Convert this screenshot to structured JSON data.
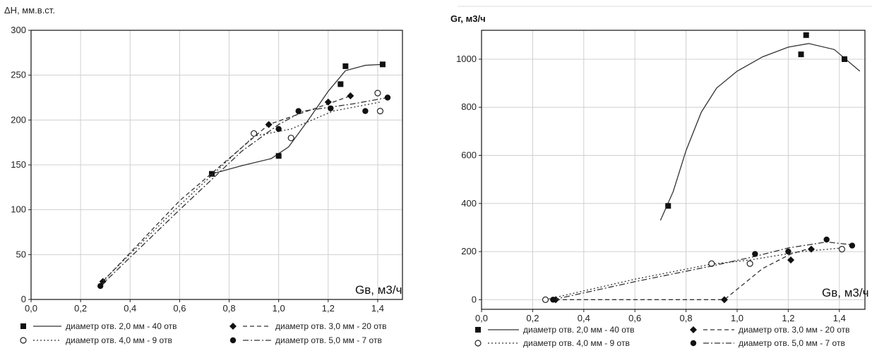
{
  "chart_data": [
    {
      "type": "scatter",
      "ylabel": "ΔН, мм.в.ст.",
      "xlabel": "Gв, м3/ч",
      "xlim": [
        0.0,
        1.5
      ],
      "ylim": [
        0,
        300
      ],
      "xticks": [
        "0,0",
        "0,2",
        "0,4",
        "0,6",
        "0,8",
        "1,0",
        "1,2",
        "1,4"
      ],
      "yticks": [
        "0",
        "50",
        "100",
        "150",
        "200",
        "250",
        "300"
      ],
      "grid": true,
      "legend_position": "bottom",
      "series": [
        {
          "name": "диаметр отв. 2,0 мм - 40 отв",
          "marker": "square-filled",
          "line": "solid",
          "points": [
            [
              0.73,
              140
            ],
            [
              1.0,
              160
            ],
            [
              1.25,
              240
            ],
            [
              1.27,
              260
            ],
            [
              1.42,
              262
            ]
          ],
          "curve": [
            [
              0.73,
              140
            ],
            [
              0.85,
              149
            ],
            [
              0.97,
              157
            ],
            [
              1.04,
              170
            ],
            [
              1.12,
              200
            ],
            [
              1.2,
              232
            ],
            [
              1.27,
              255
            ],
            [
              1.35,
              261
            ],
            [
              1.42,
              262
            ]
          ]
        },
        {
          "name": "диаметр отв. 3,0 мм - 20 отв",
          "marker": "diamond-filled",
          "line": "dashed",
          "points": [
            [
              0.29,
              20
            ],
            [
              0.96,
              195
            ],
            [
              1.2,
              220
            ],
            [
              1.29,
              227
            ]
          ],
          "curve": [
            [
              0.29,
              20
            ],
            [
              0.6,
              110
            ],
            [
              0.96,
              195
            ],
            [
              1.2,
              218
            ],
            [
              1.29,
              227
            ]
          ]
        },
        {
          "name": "диаметр отв. 4,0 мм - 9 отв",
          "marker": "circle-open",
          "line": "dotted",
          "points": [
            [
              0.9,
              185
            ],
            [
              1.05,
              180
            ],
            [
              1.4,
              230
            ],
            [
              1.41,
              210
            ]
          ],
          "curve": [
            [
              0.28,
              18
            ],
            [
              0.6,
              105
            ],
            [
              0.9,
              182
            ],
            [
              1.05,
              190
            ],
            [
              1.22,
              210
            ],
            [
              1.41,
              220
            ]
          ]
        },
        {
          "name": "диаметр отв. 5,0 мм - 7 отв",
          "marker": "circle-filled",
          "line": "dashdot",
          "points": [
            [
              0.28,
              15
            ],
            [
              1.0,
              190
            ],
            [
              1.08,
              210
            ],
            [
              1.21,
              213
            ],
            [
              1.35,
              210
            ],
            [
              1.44,
              225
            ]
          ],
          "curve": [
            [
              0.28,
              15
            ],
            [
              0.6,
              100
            ],
            [
              0.85,
              165
            ],
            [
              1.0,
              195
            ],
            [
              1.1,
              210
            ],
            [
              1.3,
              218
            ],
            [
              1.44,
              225
            ]
          ]
        }
      ]
    },
    {
      "type": "scatter",
      "ylabel": "Gг, м3/ч",
      "xlabel": "Gв, м3/ч",
      "xlim": [
        0.0,
        1.5
      ],
      "ylim": [
        -40,
        1120
      ],
      "xticks": [
        "0,0",
        "0,2",
        "0,4",
        "0,6",
        "0,8",
        "1,0",
        "1,2",
        "1,4"
      ],
      "yticks": [
        "0",
        "200",
        "400",
        "600",
        "800",
        "1000"
      ],
      "grid": true,
      "legend_position": "bottom",
      "series": [
        {
          "name": "диаметр отв. 2,0 мм - 40 отв",
          "marker": "square-filled",
          "line": "solid",
          "points": [
            [
              0.73,
              390
            ],
            [
              1.25,
              1020
            ],
            [
              1.27,
              1100
            ],
            [
              1.42,
              1000
            ]
          ],
          "curve": [
            [
              0.7,
              330
            ],
            [
              0.75,
              450
            ],
            [
              0.8,
              620
            ],
            [
              0.86,
              780
            ],
            [
              0.92,
              880
            ],
            [
              1.0,
              950
            ],
            [
              1.1,
              1010
            ],
            [
              1.2,
              1050
            ],
            [
              1.28,
              1065
            ],
            [
              1.38,
              1040
            ],
            [
              1.48,
              950
            ]
          ]
        },
        {
          "name": "диаметр отв. 3,0 мм - 20 отв",
          "marker": "diamond-filled",
          "line": "dashed",
          "points": [
            [
              0.29,
              0
            ],
            [
              0.95,
              0
            ],
            [
              1.21,
              165
            ],
            [
              1.29,
              210
            ]
          ],
          "curve": [
            [
              0.29,
              0
            ],
            [
              0.95,
              0
            ],
            [
              1.1,
              130
            ],
            [
              1.21,
              190
            ],
            [
              1.29,
              215
            ]
          ]
        },
        {
          "name": "диаметр отв. 4,0 мм - 9 отв",
          "marker": "circle-open",
          "line": "dotted",
          "points": [
            [
              0.25,
              0
            ],
            [
              0.9,
              150
            ],
            [
              1.05,
              150
            ],
            [
              1.41,
              210
            ]
          ],
          "curve": [
            [
              0.25,
              0
            ],
            [
              0.6,
              85
            ],
            [
              0.9,
              148
            ],
            [
              1.05,
              165
            ],
            [
              1.25,
              200
            ],
            [
              1.41,
              215
            ]
          ]
        },
        {
          "name": "диаметр отв. 5,0 мм - 7 отв",
          "marker": "circle-filled",
          "line": "dashdot",
          "points": [
            [
              0.28,
              0
            ],
            [
              1.07,
              190
            ],
            [
              1.2,
              200
            ],
            [
              1.35,
              250
            ],
            [
              1.45,
              225
            ]
          ],
          "curve": [
            [
              0.28,
              0
            ],
            [
              0.6,
              75
            ],
            [
              0.9,
              140
            ],
            [
              1.07,
              180
            ],
            [
              1.2,
              215
            ],
            [
              1.35,
              240
            ],
            [
              1.45,
              228
            ]
          ]
        }
      ]
    }
  ]
}
